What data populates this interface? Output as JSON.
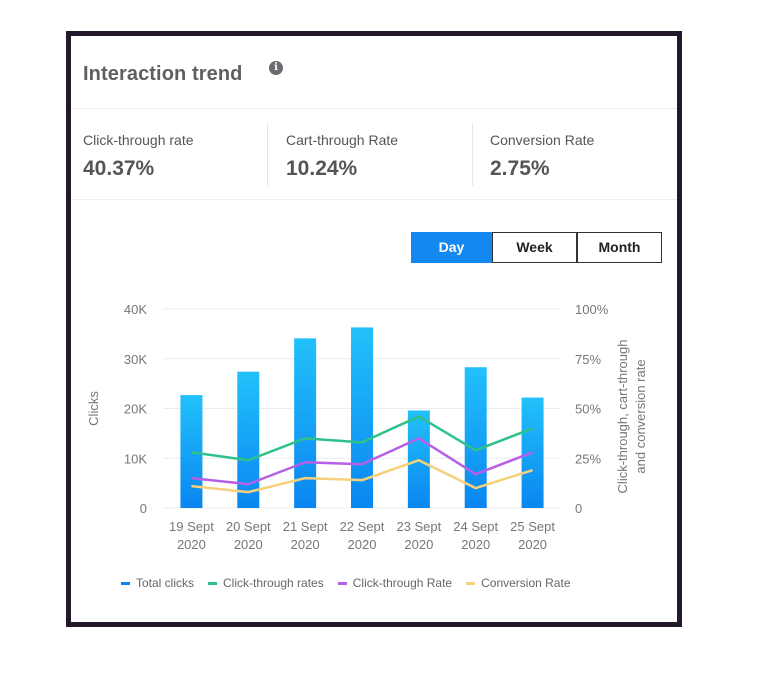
{
  "header": {
    "title": "Interaction trend",
    "info_icon": "info-icon"
  },
  "kpis": [
    {
      "label": "Click-through rate",
      "value": "40.37%"
    },
    {
      "label": "Cart-through Rate",
      "value": "10.24%"
    },
    {
      "label": "Conversion Rate",
      "value": "2.75%"
    }
  ],
  "period_toggle": {
    "options": [
      "Day",
      "Week",
      "Month"
    ],
    "selected": "Day"
  },
  "colors": {
    "accent": "#1288f0",
    "bar_top": "#22c1fb",
    "bar_bottom": "#0a86f0",
    "click_through_rates": "#2ec28a",
    "click_through_rate": "#b660e8",
    "conversion_rate": "#f7d17a"
  },
  "chart_data": {
    "type": "bar",
    "categories": [
      "19 Sept 2020",
      "20 Sept 2020",
      "21 Sept 2020",
      "22 Sept 2020",
      "23 Sept 2020",
      "24 Sept 2020",
      "25 Sept 2020"
    ],
    "x_tick_lines": [
      [
        "19 Sept",
        "2020"
      ],
      [
        "20 Sept",
        "2020"
      ],
      [
        "21 Sept",
        "2020"
      ],
      [
        "22 Sept",
        "2020"
      ],
      [
        "23 Sept",
        "2020"
      ],
      [
        "24 Sept",
        "2020"
      ],
      [
        "25 Sept",
        "2020"
      ]
    ],
    "ylabel": "Clicks",
    "y2label": "Click-through, cart-through and conversion rate",
    "ylim": [
      0,
      40000
    ],
    "y2lim": [
      0,
      100
    ],
    "y_ticks": [
      "0",
      "10K",
      "20K",
      "30K",
      "40K"
    ],
    "y2_ticks": [
      "0",
      "25%",
      "50%",
      "75%",
      "100%"
    ],
    "grid": "horizontal",
    "legend_position": "bottom",
    "series": [
      {
        "name": "Total clicks",
        "type": "bar",
        "axis": "left",
        "color_key": "bar_top",
        "values": [
          22700,
          27400,
          34100,
          36300,
          19600,
          28300,
          22200
        ]
      },
      {
        "name": "Click-through rates",
        "type": "line",
        "axis": "right",
        "color_key": "click_through_rates",
        "values": [
          28,
          24,
          35,
          33,
          46,
          29,
          40
        ]
      },
      {
        "name": "Click-through Rate",
        "type": "line",
        "axis": "right",
        "color_key": "click_through_rate",
        "values": [
          15,
          12,
          23,
          22,
          35,
          17,
          28
        ]
      },
      {
        "name": "Conversion Rate",
        "type": "line",
        "axis": "right",
        "color_key": "conversion_rate",
        "values": [
          11,
          8,
          15,
          14,
          24,
          10,
          19
        ]
      }
    ]
  }
}
